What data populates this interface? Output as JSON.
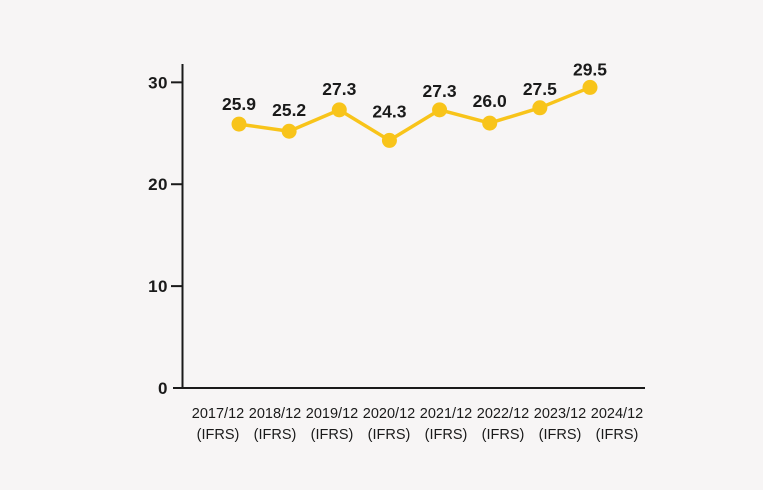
{
  "chart_data": {
    "type": "line",
    "categories": [
      "2017/12",
      "2018/12",
      "2019/12",
      "2020/12",
      "2021/12",
      "2022/12",
      "2023/12",
      "2024/12"
    ],
    "category_sublabel": "(IFRS)",
    "values": [
      25.9,
      25.2,
      27.3,
      24.3,
      27.3,
      26.0,
      27.5,
      29.5
    ],
    "value_labels": [
      "25.9",
      "25.2",
      "27.3",
      "24.3",
      "27.3",
      "26.0",
      "27.5",
      "29.5"
    ],
    "title": "",
    "xlabel": "",
    "ylabel": "",
    "ylim": [
      0,
      31.8
    ],
    "yticks": [
      0,
      10,
      20,
      30
    ],
    "grid": false,
    "legend": false,
    "colors": {
      "line": "#F8C41A",
      "marker": "#F8C41A",
      "axis": "#1A1A1A",
      "text": "#1A1A1A",
      "background": "#F7F5F5"
    }
  }
}
